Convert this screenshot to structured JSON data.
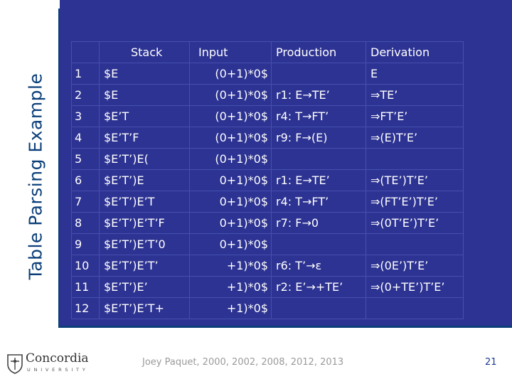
{
  "slide": {
    "title": "Table Parsing Example",
    "page_number": "21",
    "credit": "Joey Paquet, 2000, 2002, 2008, 2012, 2013"
  },
  "logo": {
    "name": "Concordia",
    "subtitle": "UNIVERSITY"
  },
  "table": {
    "headers": {
      "step": "",
      "stack": "Stack",
      "input": "Input",
      "production": "Production",
      "derivation": "Derivation"
    },
    "rows": [
      {
        "step": "1",
        "stack": "$E",
        "input": "(0+1)*0$",
        "production": "",
        "derivation": "E"
      },
      {
        "step": "2",
        "stack": "$E",
        "input": "(0+1)*0$",
        "production": "r1: E→TE’",
        "derivation": "⇒TE’"
      },
      {
        "step": "3",
        "stack": "$E’T",
        "input": "(0+1)*0$",
        "production": "r4: T→FT’",
        "derivation": "⇒FT’E’"
      },
      {
        "step": "4",
        "stack": "$E’T’F",
        "input": "(0+1)*0$",
        "production": "r9: F→(E)",
        "derivation": "⇒(E)T’E’"
      },
      {
        "step": "5",
        "stack": "$E’T’)E(",
        "input": "(0+1)*0$",
        "production": "",
        "derivation": ""
      },
      {
        "step": "6",
        "stack": "$E’T’)E",
        "input": "0+1)*0$",
        "production": "r1: E→TE’",
        "derivation": "⇒(TE’)T’E’"
      },
      {
        "step": "7",
        "stack": "$E’T’)E’T",
        "input": "0+1)*0$",
        "production": "r4: T→FT’",
        "derivation": "⇒(FT’E’)T’E’"
      },
      {
        "step": "8",
        "stack": "$E’T’)E’T’F",
        "input": "0+1)*0$",
        "production": "r7: F→0",
        "derivation": "⇒(0T’E’)T’E’"
      },
      {
        "step": "9",
        "stack": "$E’T’)E’T’0",
        "input": "0+1)*0$",
        "production": "",
        "derivation": ""
      },
      {
        "step": "10",
        "stack": "$E’T’)E’T’",
        "input": "+1)*0$",
        "production": "r6: T’→ε",
        "derivation": "⇒(0E’)T’E’"
      },
      {
        "step": "11",
        "stack": "$E’T’)E’",
        "input": "+1)*0$",
        "production": "r2: E’→+TE’",
        "derivation": "⇒(0+TE’)T’E’"
      },
      {
        "step": "12",
        "stack": "$E’T’)E’T+",
        "input": "+1)*0$",
        "production": "",
        "derivation": ""
      }
    ]
  },
  "colors": {
    "panel": "#2d3392",
    "accent": "#0c3f7a",
    "text": "#ffffff"
  }
}
